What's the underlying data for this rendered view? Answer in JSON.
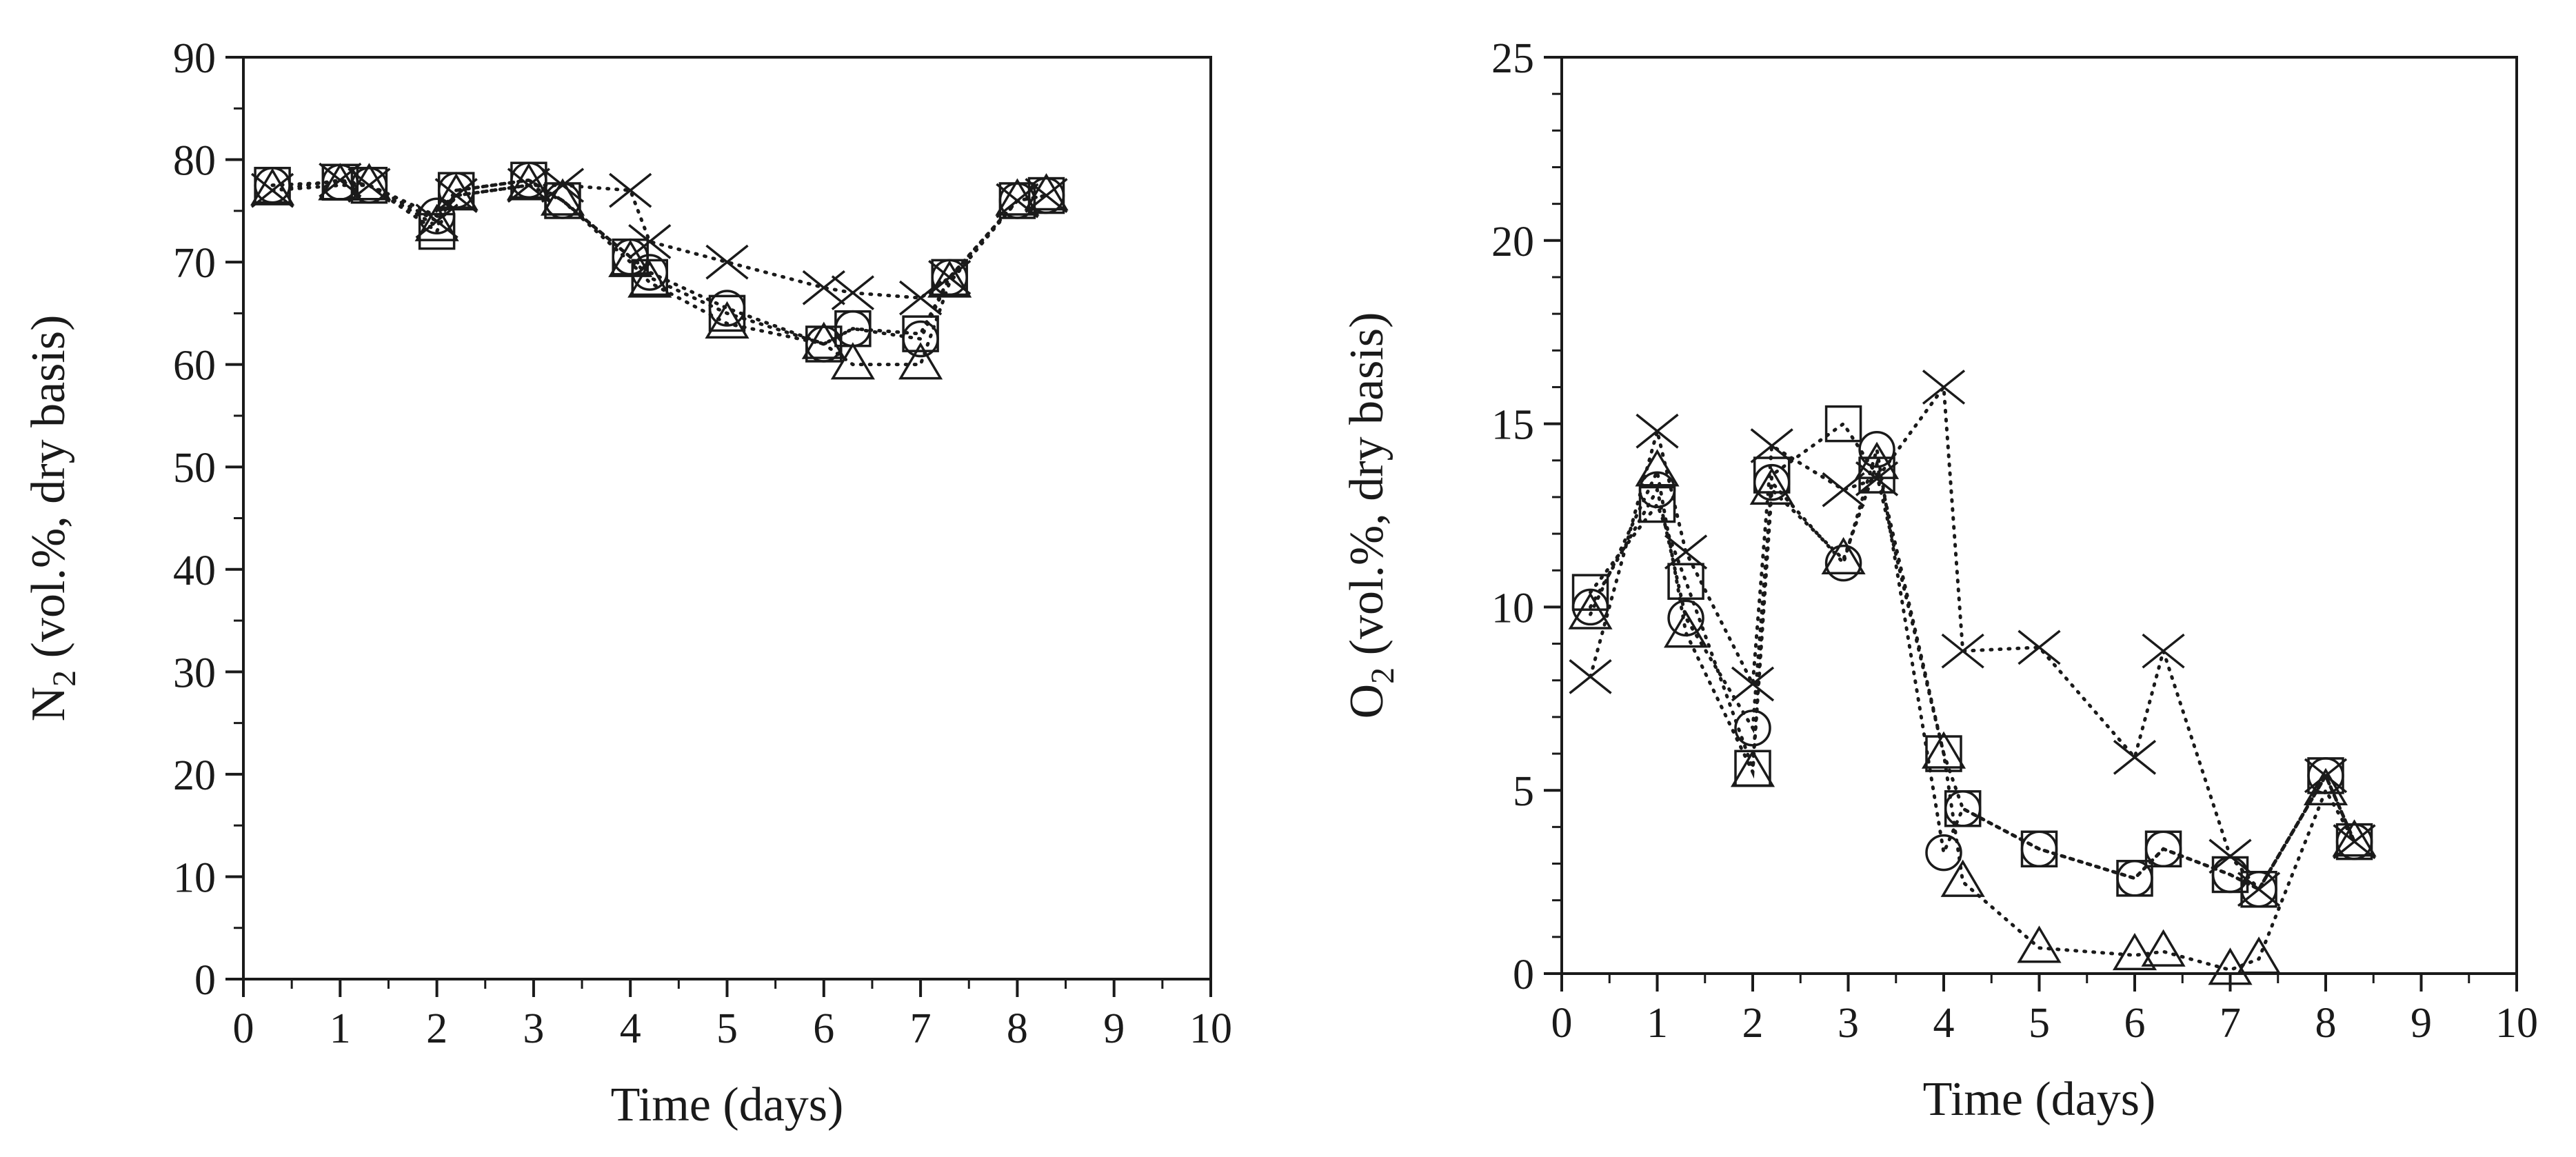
{
  "chart_data": [
    {
      "type": "scatter",
      "id": "n2",
      "title": "",
      "xlabel": "Time (days)",
      "ylabel": {
        "main": "N",
        "sub": "2",
        "rest": " (vol.%, dry basis)"
      },
      "xlim": [
        0,
        10
      ],
      "ylim": [
        0,
        90
      ],
      "xticks": [
        "0",
        "1",
        "2",
        "3",
        "4",
        "5",
        "6",
        "7",
        "8",
        "9",
        "10"
      ],
      "yticks": [
        "0",
        "10",
        "20",
        "30",
        "40",
        "50",
        "60",
        "70",
        "80",
        "90"
      ],
      "xminor": 0.5,
      "yminor": 5,
      "grid": false,
      "legend": false,
      "series": [
        {
          "marker": "circle",
          "line": "dotted",
          "x": [
            0.3,
            1.0,
            1.3,
            2.0,
            2.2,
            2.95,
            3.3,
            4.0,
            4.2,
            5.0,
            6.0,
            6.3,
            7.0,
            7.3,
            8.0,
            8.3
          ],
          "y": [
            77.5,
            77.8,
            77.5,
            74.5,
            77.0,
            78.0,
            76.0,
            70.5,
            69.0,
            65.5,
            62.0,
            63.5,
            62.5,
            68.5,
            76.0,
            76.5
          ]
        },
        {
          "marker": "triangle",
          "line": "dotted",
          "x": [
            0.3,
            1.0,
            1.3,
            2.0,
            2.2,
            2.95,
            3.3,
            4.0,
            4.2,
            5.0,
            6.0,
            6.3,
            7.0,
            7.3,
            8.0,
            8.3
          ],
          "y": [
            77.0,
            77.5,
            77.5,
            73.5,
            76.5,
            77.5,
            76.0,
            70.0,
            68.0,
            64.0,
            62.0,
            60.0,
            60.0,
            68.0,
            76.0,
            76.5
          ]
        },
        {
          "marker": "x",
          "line": "dotted",
          "x": [
            0.3,
            1.0,
            1.3,
            2.0,
            2.2,
            2.95,
            3.3,
            4.0,
            4.2,
            5.0,
            6.0,
            6.3,
            7.0,
            7.3,
            8.0,
            8.3
          ],
          "y": [
            77.0,
            78.0,
            77.5,
            74.0,
            76.5,
            77.5,
            77.5,
            77.0,
            72.0,
            70.0,
            67.5,
            67.0,
            66.5,
            68.5,
            76.0,
            76.5
          ]
        },
        {
          "marker": "square",
          "line": "dotted",
          "x": [
            0.3,
            1.0,
            1.3,
            2.0,
            2.2,
            2.95,
            3.3,
            4.0,
            4.2,
            5.0,
            6.0,
            6.3,
            7.0,
            7.3,
            8.0,
            8.3
          ],
          "y": [
            77.5,
            77.8,
            77.5,
            73.0,
            77.0,
            78.0,
            76.0,
            70.5,
            68.5,
            65.0,
            62.0,
            63.5,
            63.0,
            68.5,
            76.0,
            76.5
          ]
        }
      ]
    },
    {
      "type": "scatter",
      "id": "o2",
      "title": "",
      "xlabel": "Time (days)",
      "ylabel": {
        "main": "O",
        "sub": "2",
        "rest": " (vol.%, dry basis)"
      },
      "xlim": [
        0,
        10
      ],
      "ylim": [
        0,
        25
      ],
      "xticks": [
        "0",
        "1",
        "2",
        "3",
        "4",
        "5",
        "6",
        "7",
        "8",
        "9",
        "10"
      ],
      "yticks": [
        "0",
        "5",
        "10",
        "15",
        "20",
        "25"
      ],
      "xminor": 0.5,
      "yminor": 1,
      "grid": false,
      "legend": false,
      "series": [
        {
          "marker": "circle",
          "line": "dotted",
          "x": [
            0.3,
            1.0,
            1.3,
            2.0,
            2.2,
            2.95,
            3.3,
            4.0,
            4.2,
            5.0,
            6.0,
            6.3,
            7.0,
            7.3,
            8.0,
            8.3
          ],
          "y": [
            10.0,
            13.2,
            9.7,
            6.7,
            13.4,
            11.2,
            14.3,
            3.3,
            4.5,
            3.4,
            2.6,
            3.4,
            2.7,
            2.3,
            5.4,
            3.6
          ]
        },
        {
          "marker": "triangle",
          "line": "dotted",
          "x": [
            0.3,
            1.0,
            1.3,
            2.0,
            2.2,
            2.95,
            3.3,
            4.0,
            4.2,
            5.0,
            6.0,
            6.3,
            7.0,
            7.3,
            8.0,
            8.3
          ],
          "y": [
            9.8,
            13.7,
            9.3,
            5.5,
            13.2,
            11.3,
            13.9,
            6.0,
            2.5,
            0.7,
            0.5,
            0.6,
            0.1,
            0.4,
            5.0,
            3.6
          ]
        },
        {
          "marker": "x",
          "line": "dotted",
          "x": [
            0.3,
            1.0,
            1.3,
            2.0,
            2.2,
            2.95,
            3.3,
            4.0,
            4.2,
            5.0,
            6.0,
            6.3,
            7.0,
            7.3,
            8.0,
            8.3
          ],
          "y": [
            8.1,
            14.8,
            11.5,
            7.9,
            14.4,
            13.2,
            13.5,
            16.0,
            8.8,
            8.9,
            5.9,
            8.8,
            3.2,
            2.3,
            5.4,
            3.6
          ]
        },
        {
          "marker": "square",
          "line": "dotted",
          "x": [
            0.3,
            1.0,
            1.3,
            2.0,
            2.2,
            2.95,
            3.3,
            4.0,
            4.2,
            5.0,
            6.0,
            6.3,
            7.0,
            7.3,
            8.0,
            8.3
          ],
          "y": [
            10.4,
            12.8,
            10.7,
            5.6,
            13.6,
            15.0,
            13.6,
            6.0,
            4.5,
            3.4,
            2.6,
            3.4,
            2.7,
            2.3,
            5.4,
            3.6
          ]
        }
      ]
    }
  ]
}
